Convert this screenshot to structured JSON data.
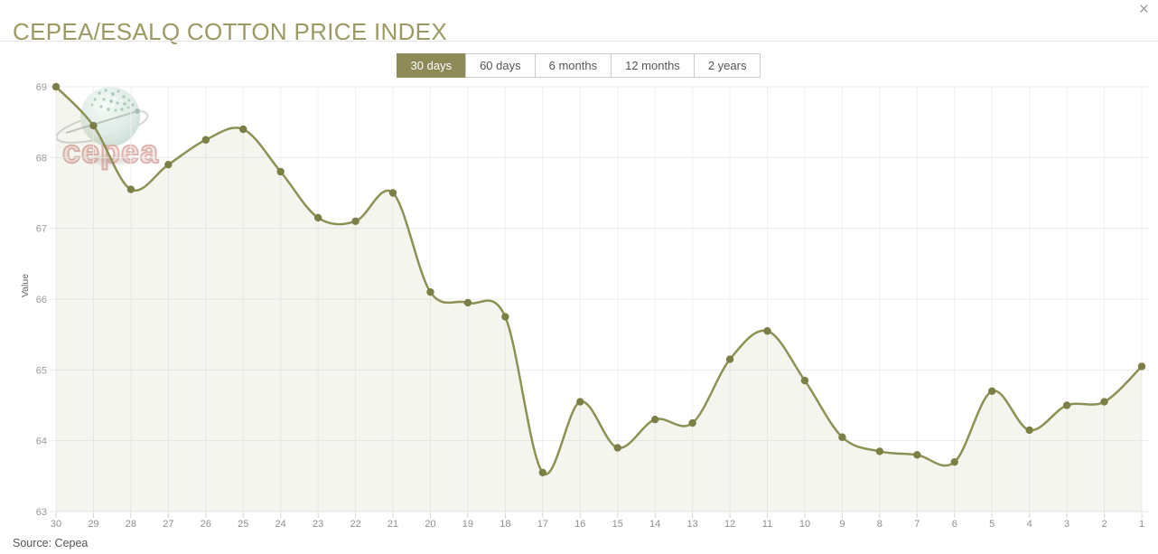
{
  "header": {
    "title": "CEPEA/ESALQ COTTON PRICE INDEX",
    "close_glyph": "×"
  },
  "range_buttons": [
    {
      "label": "30 days",
      "active": true
    },
    {
      "label": "60 days",
      "active": false
    },
    {
      "label": "6 months",
      "active": false
    },
    {
      "label": "12 months",
      "active": false
    },
    {
      "label": "2 years",
      "active": false
    }
  ],
  "watermark": {
    "text": "cepea"
  },
  "source": "Source: Cepea",
  "chart_data": {
    "type": "area",
    "title": "CEPEA/ESALQ COTTON PRICE INDEX",
    "xlabel": "",
    "ylabel": "Value",
    "x": [
      30,
      29,
      28,
      27,
      26,
      25,
      24,
      23,
      22,
      21,
      20,
      19,
      18,
      17,
      16,
      15,
      14,
      13,
      12,
      11,
      10,
      9,
      8,
      7,
      6,
      5,
      4,
      3,
      2,
      1
    ],
    "values": [
      69.0,
      68.45,
      67.55,
      67.9,
      68.25,
      68.4,
      67.8,
      67.15,
      67.1,
      67.5,
      66.1,
      65.95,
      65.75,
      63.55,
      64.55,
      63.9,
      64.3,
      64.25,
      65.15,
      65.55,
      64.85,
      64.05,
      63.85,
      63.8,
      63.7,
      64.7,
      64.15,
      64.5,
      64.55,
      65.05
    ],
    "ylim": [
      63,
      69
    ],
    "yticks": [
      63,
      64,
      65,
      66,
      67,
      68,
      69
    ],
    "grid": true,
    "legend": false,
    "source": "Source: Cepea",
    "colors": {
      "title": "#9c9a62",
      "active_button_bg": "#8d8a58",
      "line": "#8d9154",
      "marker": "#7b7f46",
      "fill": "#8e9155",
      "fill_opacity": 0.09,
      "grid_h": "#ececec",
      "grid_v": "#f2efef",
      "tick_label": "#8f8f8f"
    }
  }
}
